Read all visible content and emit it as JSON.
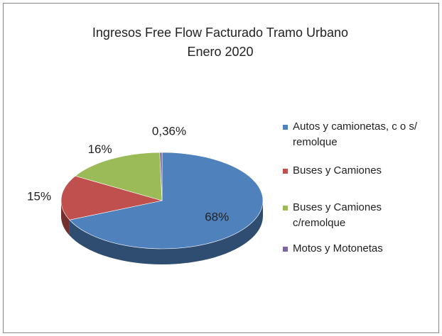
{
  "chart_data": {
    "type": "pie",
    "title": [
      "Ingresos Free Flow Facturado Tramo Urbano",
      "Enero 2020"
    ],
    "categories": [
      "Autos y camionetas, c o s/ remolque",
      "Buses y Camiones",
      "Buses y Camiones c/remolque",
      "Motos y Motonetas"
    ],
    "values": [
      68,
      15,
      16,
      0.36
    ],
    "value_labels": [
      "68%",
      "15%",
      "16%",
      "0,36%"
    ],
    "colors": [
      "#4f81bd",
      "#c0504d",
      "#9bbb59",
      "#8064a2"
    ],
    "legend": "right"
  }
}
